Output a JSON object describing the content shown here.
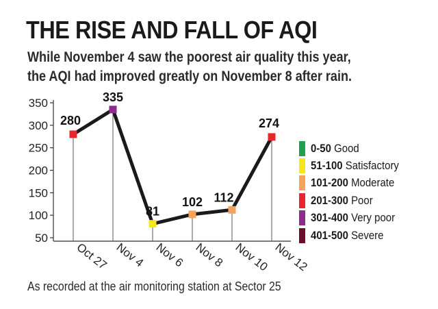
{
  "header": {
    "title": "THE RISE AND FALL OF AQI",
    "subtitle_line1": "While November 4 saw the poorest air quality this year,",
    "subtitle_line2": "the AQI had improved greatly on November 8 after rain."
  },
  "chart_data": {
    "type": "line",
    "categories": [
      "Oct 27",
      "Nov 4",
      "Nov 6",
      "Nov 8",
      "Nov 10",
      "Nov 12"
    ],
    "values": [
      280,
      335,
      81,
      102,
      112,
      274
    ],
    "data_labels": [
      "280",
      "335",
      "81",
      "102",
      "112",
      "274"
    ],
    "point_colors": [
      "#e8262c",
      "#8e2b8e",
      "#f6e61a",
      "#f4a35a",
      "#f4a35a",
      "#e8262c"
    ],
    "yticks": [
      50,
      100,
      150,
      200,
      250,
      300,
      350
    ],
    "ylim": [
      50,
      350
    ],
    "line_color": "#1a1a1a",
    "legend_position": "right",
    "grid": false
  },
  "legend": {
    "items": [
      {
        "range": "0-50",
        "label": "Good",
        "color": "#1aa34a"
      },
      {
        "range": "51-100",
        "label": "Satisfactory",
        "color": "#f6e61a"
      },
      {
        "range": "101-200",
        "label": "Moderate",
        "color": "#f4a35a"
      },
      {
        "range": "201-300",
        "label": "Poor",
        "color": "#e8262c"
      },
      {
        "range": "301-400",
        "label": "Very poor",
        "color": "#8e2b8e"
      },
      {
        "range": "401-500",
        "label": "Severe",
        "color": "#6b0e2e"
      }
    ]
  },
  "footnote": "As recorded at the air monitoring station at Sector 25"
}
